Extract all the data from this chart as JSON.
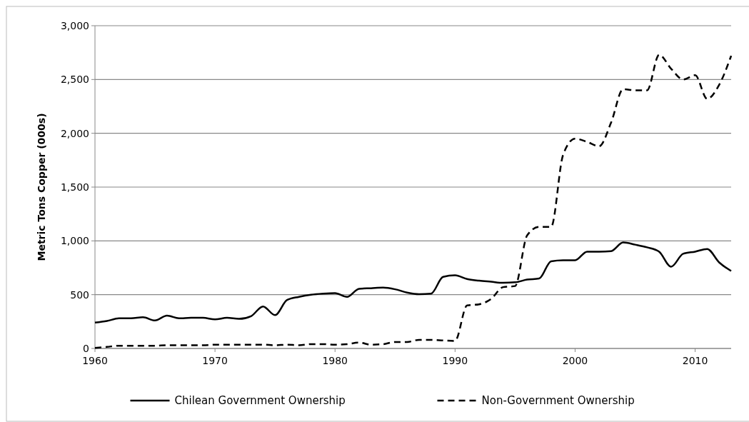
{
  "chart_data": {
    "type": "line",
    "ylabel": "Metric Tons Copper (000s)",
    "x": [
      1960,
      1961,
      1962,
      1963,
      1964,
      1965,
      1966,
      1967,
      1968,
      1969,
      1970,
      1971,
      1972,
      1973,
      1974,
      1975,
      1976,
      1977,
      1978,
      1979,
      1980,
      1981,
      1982,
      1983,
      1984,
      1985,
      1986,
      1987,
      1988,
      1989,
      1990,
      1991,
      1992,
      1993,
      1994,
      1995,
      1996,
      1997,
      1998,
      1999,
      2000,
      2001,
      2002,
      2003,
      2004,
      2005,
      2006,
      2007,
      2008,
      2009,
      2010,
      2011,
      2012,
      2013
    ],
    "series": [
      {
        "name": "Chilean Government Ownership",
        "color": "#000000",
        "line_style": "solid",
        "values": [
          240,
          255,
          280,
          280,
          290,
          260,
          305,
          280,
          285,
          285,
          270,
          285,
          275,
          300,
          390,
          310,
          450,
          480,
          500,
          510,
          515,
          480,
          555,
          560,
          565,
          550,
          520,
          505,
          510,
          665,
          680,
          645,
          630,
          620,
          610,
          615,
          640,
          650,
          810,
          820,
          820,
          900,
          900,
          905,
          985,
          965,
          940,
          900,
          760,
          880,
          900,
          925,
          800,
          720
        ]
      },
      {
        "name": "Non-Government Ownership",
        "color": "#000000",
        "line_style": "dashed",
        "values": [
          5,
          15,
          25,
          25,
          25,
          25,
          30,
          30,
          30,
          30,
          35,
          35,
          35,
          35,
          35,
          30,
          35,
          30,
          40,
          40,
          35,
          40,
          55,
          35,
          40,
          60,
          60,
          80,
          80,
          75,
          70,
          400,
          410,
          460,
          570,
          580,
          1050,
          1130,
          1130,
          1800,
          1950,
          1920,
          1880,
          2100,
          2410,
          2400,
          2400,
          2730,
          2600,
          2500,
          2540,
          2320,
          2450,
          2720
        ]
      }
    ],
    "xlim": [
      1960,
      2013
    ],
    "xticks": [
      1960,
      1970,
      1980,
      1990,
      2000,
      2010
    ],
    "ylim": [
      0,
      3000
    ],
    "yticks": [
      {
        "value": 0,
        "label": "0"
      },
      {
        "value": 500,
        "label": "500"
      },
      {
        "value": 1000,
        "label": "1,000"
      },
      {
        "value": 1500,
        "label": "1,500"
      },
      {
        "value": 2000,
        "label": "2,000"
      },
      {
        "value": 2500,
        "label": "2,500"
      },
      {
        "value": 3000,
        "label": "3,000"
      }
    ],
    "grid": "y",
    "legend": "bottom",
    "marker": "none"
  }
}
